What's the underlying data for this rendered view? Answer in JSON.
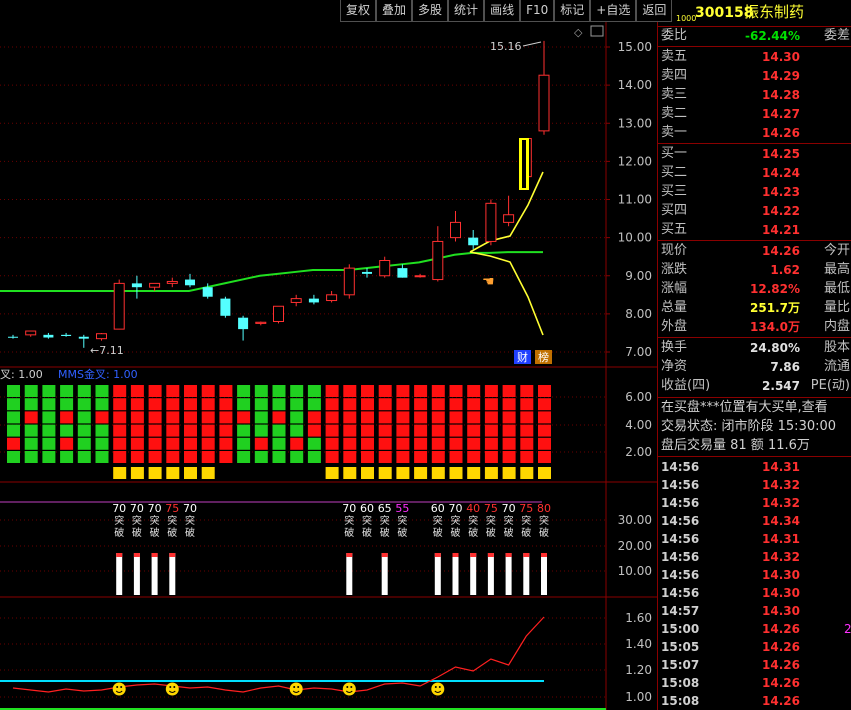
{
  "toolbar": {
    "buttons": [
      "复权",
      "叠加",
      "多股",
      "统计",
      "画线",
      "F10",
      "标记",
      "+自选",
      "返回"
    ]
  },
  "stock": {
    "prefix": "1000",
    "code": "300158",
    "name": "振东制药"
  },
  "weibi": {
    "label": "委比",
    "value": "-62.44%",
    "right": "委差"
  },
  "asks": [
    {
      "label": "卖五",
      "price": "14.30"
    },
    {
      "label": "卖四",
      "price": "14.29"
    },
    {
      "label": "卖三",
      "price": "14.28"
    },
    {
      "label": "卖二",
      "price": "14.27"
    },
    {
      "label": "卖一",
      "price": "14.26"
    }
  ],
  "bids": [
    {
      "label": "买一",
      "price": "14.25"
    },
    {
      "label": "买二",
      "price": "14.24"
    },
    {
      "label": "买三",
      "price": "14.23"
    },
    {
      "label": "买四",
      "price": "14.22"
    },
    {
      "label": "买五",
      "price": "14.21"
    }
  ],
  "quote": [
    {
      "label": "现价",
      "value": "14.26",
      "color": "#ff3030",
      "right": "今开"
    },
    {
      "label": "涨跌",
      "value": "1.62",
      "color": "#ff3030",
      "right": "最高"
    },
    {
      "label": "涨幅",
      "value": "12.82%",
      "color": "#ff3030",
      "right": "最低"
    },
    {
      "label": "总量",
      "value": "251.7万",
      "color": "#ffff33",
      "right": "量比"
    },
    {
      "label": "外盘",
      "value": "134.0万",
      "color": "#ff3030",
      "right": "内盘"
    }
  ],
  "quote2": [
    {
      "label": "换手",
      "value": "24.80%",
      "color": "#e0e0e0",
      "right": "股本"
    },
    {
      "label": "净资",
      "value": "7.86",
      "color": "#e0e0e0",
      "right": "流通"
    },
    {
      "label": "收益(四)",
      "value": "2.547",
      "color": "#e0e0e0",
      "right": "PE(动)"
    }
  ],
  "notice": {
    "line1": "在买盘***位置有大买单,查看",
    "line2": "交易状态: 闭市阶段  15:30:00",
    "line3": "盘后交易量 81 额 11.6万"
  },
  "ticks": [
    {
      "time": "14:56",
      "price": "14.31"
    },
    {
      "time": "14:56",
      "price": "14.32"
    },
    {
      "time": "14:56",
      "price": "14.32"
    },
    {
      "time": "14:56",
      "price": "14.34"
    },
    {
      "time": "14:56",
      "price": "14.31"
    },
    {
      "time": "14:56",
      "price": "14.32"
    },
    {
      "time": "14:56",
      "price": "14.30"
    },
    {
      "time": "14:56",
      "price": "14.30"
    },
    {
      "time": "14:57",
      "price": "14.30"
    },
    {
      "time": "15:00",
      "price": "14.26",
      "extra": "2"
    },
    {
      "time": "15:05",
      "price": "14.26"
    },
    {
      "time": "15:07",
      "price": "14.26"
    },
    {
      "time": "15:08",
      "price": "14.26"
    },
    {
      "time": "15:08",
      "price": "14.26"
    }
  ],
  "chart": {
    "price_axis": [
      "15.00",
      "14.00",
      "13.00",
      "12.00",
      "11.00",
      "10.00",
      "9.00",
      "8.00",
      "7.00"
    ],
    "high_label": "15.16",
    "low_label": "7.11",
    "badges": [
      "财",
      "榜"
    ],
    "ind1_axis": [
      "6.00",
      "4.00",
      "2.00"
    ],
    "ind1_title_left": "叉: 1.00",
    "ind1_title_right": "MMS金叉: 1.00",
    "ind2_axis": [
      "30.00",
      "20.00",
      "10.00"
    ],
    "ind3_axis": [
      "1.60",
      "1.40",
      "1.20",
      "1.00"
    ],
    "ind2_numbers": [
      {
        "t": "70",
        "c": "#ffffff"
      },
      {
        "t": "70",
        "c": "#ffffff"
      },
      {
        "t": "70",
        "c": "#ffffff"
      },
      {
        "t": "75",
        "c": "#ff3030"
      },
      {
        "t": "70",
        "c": "#ffffff"
      },
      {
        "t": "70",
        "c": "#ffffff"
      },
      {
        "t": "60",
        "c": "#ffffff"
      },
      {
        "t": "65",
        "c": "#ffffff"
      },
      {
        "t": "55",
        "c": "#ff30ff"
      },
      {
        "t": "60",
        "c": "#ffffff"
      },
      {
        "t": "70",
        "c": "#ffffff"
      },
      {
        "t": "40",
        "c": "#ff3030"
      },
      {
        "t": "75",
        "c": "#ff3030"
      },
      {
        "t": "70",
        "c": "#ffffff"
      },
      {
        "t": "75",
        "c": "#ff3030"
      },
      {
        "t": "80",
        "c": "#ff3030"
      }
    ],
    "ind2_signal": "突破"
  },
  "chart_data": {
    "type": "candlestick",
    "price_ylim": [
      6.8,
      15.5
    ],
    "candles": [
      {
        "o": 7.4,
        "h": 7.45,
        "l": 7.35,
        "c": 7.38
      },
      {
        "o": 7.45,
        "h": 7.55,
        "l": 7.4,
        "c": 7.55
      },
      {
        "o": 7.45,
        "h": 7.5,
        "l": 7.35,
        "c": 7.38
      },
      {
        "o": 7.45,
        "h": 7.5,
        "l": 7.4,
        "c": 7.42
      },
      {
        "o": 7.4,
        "h": 7.45,
        "l": 7.11,
        "c": 7.35
      },
      {
        "o": 7.35,
        "h": 7.5,
        "l": 7.3,
        "c": 7.48
      },
      {
        "o": 7.6,
        "h": 8.9,
        "l": 7.6,
        "c": 8.8
      },
      {
        "o": 8.8,
        "h": 9.0,
        "l": 8.4,
        "c": 8.7
      },
      {
        "o": 8.7,
        "h": 8.8,
        "l": 8.6,
        "c": 8.8
      },
      {
        "o": 8.8,
        "h": 8.95,
        "l": 8.7,
        "c": 8.85
      },
      {
        "o": 8.9,
        "h": 9.05,
        "l": 8.7,
        "c": 8.75
      },
      {
        "o": 8.7,
        "h": 8.8,
        "l": 8.4,
        "c": 8.45
      },
      {
        "o": 8.4,
        "h": 8.45,
        "l": 7.9,
        "c": 7.95
      },
      {
        "o": 7.9,
        "h": 7.95,
        "l": 7.3,
        "c": 7.6
      },
      {
        "o": 7.75,
        "h": 7.8,
        "l": 7.7,
        "c": 7.78
      },
      {
        "o": 7.8,
        "h": 8.2,
        "l": 7.75,
        "c": 8.2
      },
      {
        "o": 8.3,
        "h": 8.5,
        "l": 8.2,
        "c": 8.4
      },
      {
        "o": 8.4,
        "h": 8.5,
        "l": 8.25,
        "c": 8.3
      },
      {
        "o": 8.35,
        "h": 8.6,
        "l": 8.3,
        "c": 8.5
      },
      {
        "o": 8.5,
        "h": 9.3,
        "l": 8.4,
        "c": 9.2
      },
      {
        "o": 9.1,
        "h": 9.2,
        "l": 8.95,
        "c": 9.05
      },
      {
        "o": 9.0,
        "h": 9.5,
        "l": 8.95,
        "c": 9.4
      },
      {
        "o": 9.2,
        "h": 9.3,
        "l": 8.95,
        "c": 8.95
      },
      {
        "o": 9.0,
        "h": 9.05,
        "l": 8.95,
        "c": 9.0
      },
      {
        "o": 8.9,
        "h": 10.3,
        "l": 8.85,
        "c": 9.9
      },
      {
        "o": 10.0,
        "h": 10.7,
        "l": 9.9,
        "c": 10.4
      },
      {
        "o": 10.0,
        "h": 10.2,
        "l": 9.7,
        "c": 9.8
      },
      {
        "o": 9.9,
        "h": 11.0,
        "l": 9.8,
        "c": 10.9
      },
      {
        "o": 10.4,
        "h": 11.1,
        "l": 10.3,
        "c": 10.6
      },
      {
        "o": 11.6,
        "h": 12.6,
        "l": 11.3,
        "c": 12.6
      },
      {
        "o": 12.8,
        "h": 15.16,
        "l": 12.7,
        "c": 14.26
      }
    ]
  }
}
